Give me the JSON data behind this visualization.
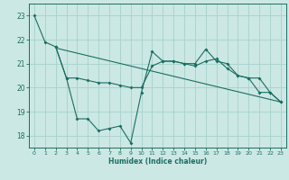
{
  "xlabel": "Humidex (Indice chaleur)",
  "background_color": "#cce8e4",
  "grid_color": "#aad4ce",
  "line_color": "#1a6e62",
  "xlim_min": -0.5,
  "xlim_max": 23.5,
  "ylim_min": 17.5,
  "ylim_max": 23.5,
  "yticks": [
    18,
    19,
    20,
    21,
    22,
    23
  ],
  "xticks": [
    0,
    1,
    2,
    3,
    4,
    5,
    6,
    7,
    8,
    9,
    10,
    11,
    12,
    13,
    14,
    15,
    16,
    17,
    18,
    19,
    20,
    21,
    22,
    23
  ],
  "line1_x": [
    0,
    1,
    2,
    3,
    4,
    5,
    6,
    7,
    8,
    9,
    10,
    11,
    12,
    13,
    14,
    15,
    16,
    17,
    18,
    19,
    20,
    21,
    22,
    23
  ],
  "line1_y": [
    23.0,
    21.9,
    21.7,
    20.4,
    18.7,
    18.7,
    18.2,
    18.3,
    18.4,
    17.7,
    19.8,
    21.5,
    21.1,
    21.1,
    21.0,
    21.0,
    21.6,
    21.1,
    21.0,
    20.5,
    20.4,
    19.8,
    19.8,
    19.4
  ],
  "line2_x": [
    2,
    3,
    4,
    5,
    6,
    7,
    8,
    9,
    10,
    11,
    12,
    13,
    14,
    15,
    16,
    17,
    18,
    19,
    20,
    21,
    22,
    23
  ],
  "line2_y": [
    21.7,
    20.4,
    20.4,
    20.3,
    20.2,
    20.2,
    20.1,
    20.0,
    20.0,
    20.9,
    21.1,
    21.1,
    21.0,
    20.9,
    21.1,
    21.2,
    20.8,
    20.5,
    20.4,
    20.4,
    19.8,
    19.4
  ],
  "line3_x": [
    2,
    23
  ],
  "line3_y": [
    21.65,
    19.4
  ]
}
